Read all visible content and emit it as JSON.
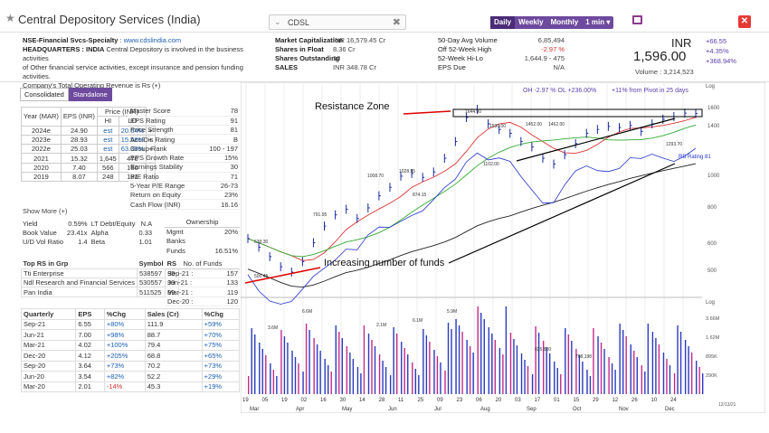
{
  "header": {
    "title": "Central Depository Services (India)",
    "search_value": "CDSL",
    "period_tabs": [
      "Daily",
      "Weekly",
      "Monthly",
      "1 min ▾"
    ],
    "active_period": "Daily"
  },
  "company": {
    "sector": "NSE-Financial Svcs-Specialty",
    "website": "www.cdslindia.com",
    "hq_label": "HEADQUARTERS : INDIA",
    "description_1": "Central Depository is involved in the business activities",
    "description_2": "of Other financial service activities, except insurance and pension funding activities.",
    "description_3": "Company's Total Operating Revenue is Rs (+)"
  },
  "stats_mid": [
    {
      "k": "Market Capitalization",
      "v": "INR 16,579.45 Cr"
    },
    {
      "k": "Shares in Float",
      "v": "8.36 Cr"
    },
    {
      "k": "Shares Outstanding",
      "v": "10"
    },
    {
      "k": "SALES",
      "v": "INR 348.78 Cr"
    }
  ],
  "stats_right": [
    {
      "k": "50-Day Avg Volume",
      "v": "6,85,494"
    },
    {
      "k": "Off 52-Week High",
      "v": "-2.97 %"
    },
    {
      "k": "52-Week Hi-Lo",
      "v": "1,644.9 - 475"
    },
    {
      "k": "EPS Due",
      "v": "N/A"
    }
  ],
  "price": {
    "currency": "INR",
    "last": "1,596.00",
    "volume": "Volume : 3,214,523",
    "changes": [
      "+66.55",
      "+4.35%",
      "+368.94%"
    ]
  },
  "subtabs": [
    "Consolidated",
    "Standalone"
  ],
  "eps_table": {
    "headers": [
      "Year (MAR)",
      "EPS (INR)",
      "Price (INR)",
      "HI",
      "LO"
    ],
    "rows": [
      [
        "2024e",
        "24.90",
        "est",
        "20.64%",
        "+"
      ],
      [
        "2023e",
        "28.93",
        "est",
        "15.58%",
        "+"
      ],
      [
        "2022e",
        "25.03",
        "est",
        "63.38%",
        "+"
      ],
      [
        "2021",
        "15.32",
        "1,645",
        "476",
        ""
      ],
      [
        "2020",
        "7.40",
        "566",
        "180",
        ""
      ],
      [
        "2019",
        "8.07",
        "248",
        "181",
        ""
      ]
    ]
  },
  "ratings": [
    {
      "k": "Master Score",
      "v": "78"
    },
    {
      "k": "EPS Rating",
      "v": "91"
    },
    {
      "k": "Price Strength",
      "v": "81"
    },
    {
      "k": "Acc/Dis Rating",
      "v": "B"
    },
    {
      "k": "Group Rank",
      "v": "100 - 197"
    },
    {
      "k": "EPS Growth Rate",
      "v": "15%"
    },
    {
      "k": "Earnings Stability",
      "v": "30"
    },
    {
      "k": "P/E Ratio",
      "v": "71"
    },
    {
      "k": "5-Year P/E Range",
      "v": "26-73"
    },
    {
      "k": "Return on Equity",
      "v": "23%"
    },
    {
      "k": "Cash Flow (INR)",
      "v": "16.16"
    }
  ],
  "show_more": "Show More (+)",
  "misc": [
    {
      "k1": "Yield",
      "v1": "0.59%",
      "k2": "LT Debt/Equity",
      "v2": "N.A"
    },
    {
      "k1": "Book Value",
      "v1": "23.41x",
      "k2": "Alpha",
      "v2": "0.33"
    },
    {
      "k1": "U/D Vol Ratio",
      "v1": "1.4",
      "k2": "Beta",
      "v2": "1.01"
    }
  ],
  "ownership": {
    "title": "Ownership",
    "rows": [
      {
        "k": "Mgmt",
        "v": "20%"
      },
      {
        "k": "Banks",
        "v": ""
      },
      {
        "k": "Funds",
        "v": "16.51%"
      }
    ]
  },
  "rs_table": {
    "headers": [
      "Top RS in Grp",
      "Symbol",
      "RS"
    ],
    "rows": [
      [
        "Tti Enterprise",
        "538597",
        "99"
      ],
      [
        "Ndl Research and Financial Services",
        "530557",
        "99"
      ],
      [
        "Pan India",
        "511525",
        "99"
      ]
    ]
  },
  "funds_table": {
    "title": "No. of Funds",
    "rows": [
      [
        "Sep-21 :",
        "157"
      ],
      [
        "Jun-21 :",
        "133"
      ],
      [
        "Mar-21 :",
        "119"
      ],
      [
        "Dec-20 :",
        "120"
      ]
    ]
  },
  "quarterly": {
    "headers": [
      "Quarterly",
      "EPS",
      "%Chg",
      "Sales (Cr)",
      "%Chg"
    ],
    "rows": [
      [
        "Sep-21",
        "6.55",
        "+80%",
        "111.9",
        "+59%"
      ],
      [
        "Jun-21",
        "7.00",
        "+98%",
        "88.7",
        "+70%"
      ],
      [
        "Mar-21",
        "4.02",
        "+100%",
        "79.4",
        "+75%"
      ],
      [
        "Dec-20",
        "4.12",
        "+205%",
        "68.8",
        "+65%"
      ],
      [
        "Sep-20",
        "3.64",
        "+73%",
        "70.2",
        "+73%"
      ],
      [
        "Jun-20",
        "3.54",
        "+82%",
        "52.2",
        "+29%"
      ],
      [
        "Mar-20",
        "2.01",
        "-14%",
        "45.3",
        "+19%"
      ]
    ]
  },
  "chart_data": {
    "type": "line",
    "summary": "OH -2.97 % OL +236.00%",
    "pivot_note": "+11% from Pivot in 25 days",
    "rs_rating": "RS Rating 81",
    "log_label": "Log",
    "annotations": [
      "Resistance Zone",
      "Increasing number of funds"
    ],
    "price_labels": [
      "1644.90",
      "1530.00",
      "1452.00",
      "1462.00",
      "1102.00",
      "1293.70",
      "1028.95",
      "1008.70",
      "874.15",
      "791.95",
      "639.30",
      "500.45"
    ],
    "volume_labels": [
      "6.6M",
      "3.6M",
      "2.1M",
      "6.1M",
      "5.9M",
      "825,800",
      "708,198"
    ],
    "y_ticks": [
      "1600",
      "1400",
      "1000",
      "800",
      "600",
      "500"
    ],
    "vol_ticks": [
      "3.66M",
      "1.62M",
      "895K",
      "290K"
    ],
    "x_days": [
      "19",
      "05",
      "19",
      "02",
      "16",
      "30",
      "14",
      "28",
      "11",
      "25",
      "09",
      "23",
      "06",
      "20",
      "03",
      "17",
      "01",
      "15",
      "29",
      "12",
      "26",
      "10",
      "24"
    ],
    "x_months": [
      "Mar",
      "Apr",
      "May",
      "Jun",
      "Jul",
      "Aug",
      "Sep",
      "Oct",
      "Nov",
      "Dec"
    ],
    "date_stamp": "12/13/21",
    "price": [
      639,
      600,
      560,
      520,
      500,
      540,
      620,
      700,
      760,
      792,
      740,
      800,
      874,
      930,
      1009,
      1029,
      1000,
      1040,
      1150,
      1300,
      1550,
      1645,
      1480,
      1420,
      1380,
      1300,
      1250,
      1150,
      1102,
      1180,
      1280,
      1380,
      1420,
      1452,
      1440,
      1462,
      1400,
      1480,
      1530,
      1560,
      1600,
      1596
    ]
  }
}
